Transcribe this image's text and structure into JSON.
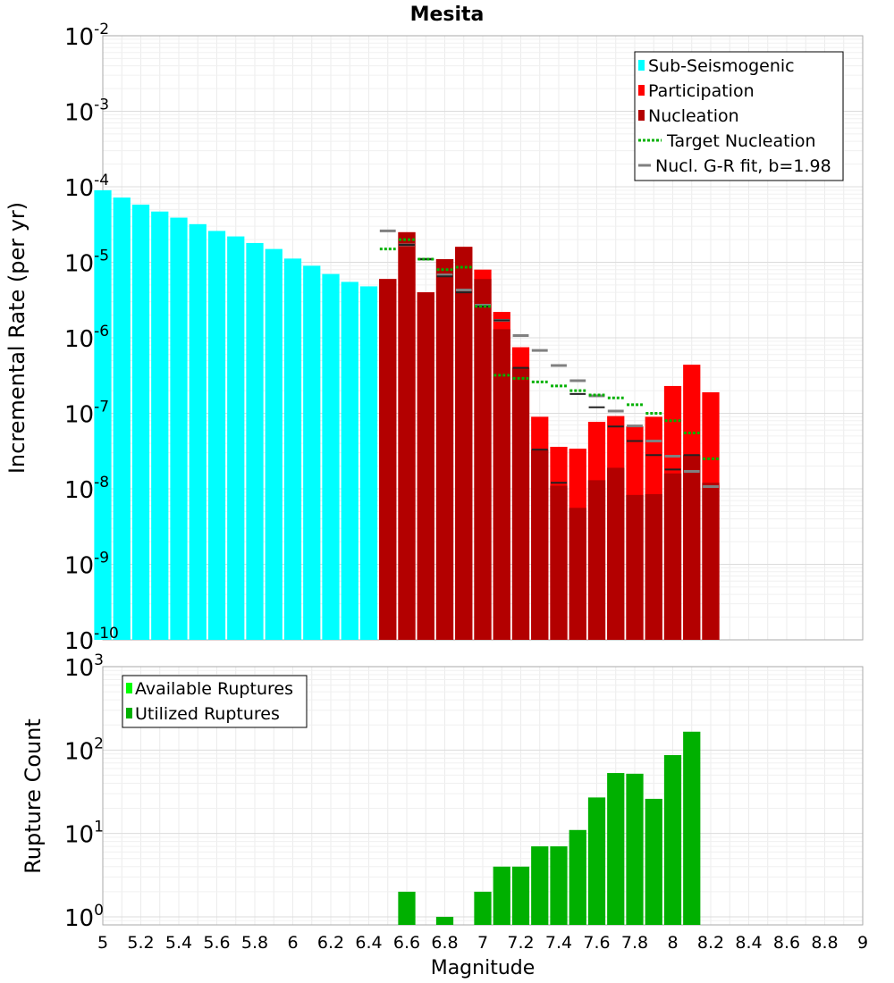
{
  "chart_data": [
    {
      "type": "bar",
      "title": "Mesita",
      "xlabel": "",
      "ylabel": "Incremental Rate (per yr)",
      "xlim": [
        5,
        9
      ],
      "ylim": [
        1e-10,
        0.01
      ],
      "yscale": "log",
      "y_tick_labels": [
        "10-10",
        "10-9",
        "10-8",
        "10-7",
        "10-6",
        "10-5",
        "10-4",
        "10-3",
        "10-2"
      ],
      "grid": true,
      "legend_position": "top-right",
      "legend": [
        "Sub-Seismogenic",
        "Participation",
        "Nucleation",
        "Target Nucleation",
        "Nucl. G-R fit, b=1.98"
      ],
      "colors": {
        "sub": "#00ffff",
        "participation": "#ff0000",
        "nucleation": "#b30000",
        "target": "#00b000",
        "gr_fit": "#808080",
        "mean_tick": "#222222"
      },
      "series": [
        {
          "name": "Sub-Seismogenic",
          "kind": "bar",
          "x": [
            5.0,
            5.1,
            5.2,
            5.3,
            5.4,
            5.5,
            5.6,
            5.7,
            5.8,
            5.9,
            6.0,
            6.1,
            6.2,
            6.3,
            6.4
          ],
          "values": [
            9e-05,
            7.2e-05,
            5.8e-05,
            4.7e-05,
            3.9e-05,
            3.2e-05,
            2.6e-05,
            2.2e-05,
            1.8e-05,
            1.5e-05,
            1.12e-05,
            9e-06,
            7e-06,
            5.5e-06,
            4.8e-06
          ]
        },
        {
          "name": "Participation",
          "kind": "bar",
          "x": [
            6.5,
            6.6,
            6.7,
            6.8,
            6.9,
            7.0,
            7.1,
            7.2,
            7.3,
            7.4,
            7.5,
            7.6,
            7.7,
            7.8,
            7.9,
            8.0,
            8.1,
            8.2
          ],
          "values": [
            6e-06,
            2.5e-05,
            4e-06,
            1.1e-05,
            1.6e-05,
            8e-06,
            2.2e-06,
            7.5e-07,
            9e-08,
            3.6e-08,
            3.4e-08,
            7.7e-08,
            9.2e-08,
            6.7e-08,
            9e-08,
            2.3e-07,
            4.4e-07,
            1.9e-07
          ]
        },
        {
          "name": "Nucleation",
          "kind": "bar",
          "x": [
            6.5,
            6.6,
            6.7,
            6.8,
            6.9,
            7.0,
            7.1,
            7.2,
            7.3,
            7.4,
            7.5,
            7.6,
            7.7,
            7.8,
            7.9,
            8.0,
            8.1,
            8.2
          ],
          "values": [
            6e-06,
            2.5e-05,
            4e-06,
            1.1e-05,
            1.6e-05,
            6e-06,
            1.3e-06,
            4e-07,
            3.3e-08,
            1.1e-08,
            5.6e-09,
            1.3e-08,
            1.9e-08,
            8.3e-09,
            8.5e-09,
            1.6e-08,
            2.8e-08,
            1.2e-08
          ]
        },
        {
          "name": "Target Nucleation",
          "kind": "dotted-step",
          "x": [
            6.5,
            6.6,
            6.7,
            6.8,
            6.9,
            7.0,
            7.1,
            7.2,
            7.3,
            7.4,
            7.5,
            7.6,
            7.7,
            7.8,
            7.9,
            8.0,
            8.1,
            8.2
          ],
          "values": [
            1.5e-05,
            2e-05,
            1.1e-05,
            8e-06,
            8.6e-06,
            2.6e-06,
            3.2e-07,
            2.9e-07,
            2.6e-07,
            2.3e-07,
            2e-07,
            1.75e-07,
            1.6e-07,
            1.3e-07,
            1e-07,
            8e-08,
            5.5e-08,
            2.5e-08
          ]
        },
        {
          "name": "Nucl. G-R fit, b=1.98",
          "kind": "step",
          "x": [
            6.5,
            6.6,
            6.7,
            6.8,
            6.9,
            7.0,
            7.1,
            7.2,
            7.3,
            7.4,
            7.5,
            7.6,
            7.7,
            7.8,
            7.9,
            8.0,
            8.1,
            8.2
          ],
          "values": [
            2.6e-05,
            1.7e-05,
            1.1e-05,
            6.8e-06,
            4.3e-06,
            2.7e-06,
            1.7e-06,
            1.07e-06,
            6.8e-07,
            4.3e-07,
            2.7e-07,
            1.7e-07,
            1.07e-07,
            6.8e-08,
            4.3e-08,
            2.7e-08,
            1.7e-08,
            1.07e-08
          ]
        },
        {
          "name": "",
          "kind": "tick",
          "x": [
            6.6,
            6.7,
            6.8,
            6.9,
            7.0,
            7.1,
            7.2,
            7.3,
            7.4,
            7.5,
            7.6,
            7.7,
            7.8,
            7.9,
            8.0,
            8.1
          ],
          "values": [
            1.7e-05,
            1.1e-05,
            6.5e-06,
            4e-06,
            2.6e-06,
            1.7e-06,
            4e-07,
            3.3e-08,
            1.2e-08,
            1.8e-07,
            1.2e-07,
            6.7e-08,
            4.3e-08,
            2.8e-08,
            1.8e-08,
            2.8e-08
          ]
        }
      ]
    },
    {
      "type": "bar",
      "xlabel": "Magnitude",
      "ylabel": "Rupture Count",
      "xlim": [
        5,
        9
      ],
      "ylim": [
        0.8,
        1000
      ],
      "yscale": "log",
      "y_tick_labels": [
        "100",
        "101",
        "102",
        "103"
      ],
      "x_tick_labels": [
        "5",
        "5.2",
        "5.4",
        "5.6",
        "5.8",
        "6",
        "6.2",
        "6.4",
        "6.6",
        "6.8",
        "7",
        "7.2",
        "7.4",
        "7.6",
        "7.8",
        "8",
        "8.2",
        "8.4",
        "8.6",
        "8.8",
        "9"
      ],
      "grid": true,
      "legend_position": "top-left",
      "legend": [
        "Available Ruptures",
        "Utilized Ruptures"
      ],
      "colors": {
        "available": "#00ff00",
        "utilized": "#00b000"
      },
      "series": [
        {
          "name": "Utilized Ruptures",
          "x": [
            6.6,
            6.7,
            6.8,
            6.9,
            7.0,
            7.1,
            7.2,
            7.3,
            7.4,
            7.5,
            7.6,
            7.7,
            7.8,
            7.9,
            8.0,
            8.1
          ],
          "values": [
            2,
            0,
            1,
            0,
            2,
            4,
            4,
            7,
            7,
            11,
            27,
            53,
            52,
            26,
            87,
            166
          ]
        }
      ]
    }
  ]
}
